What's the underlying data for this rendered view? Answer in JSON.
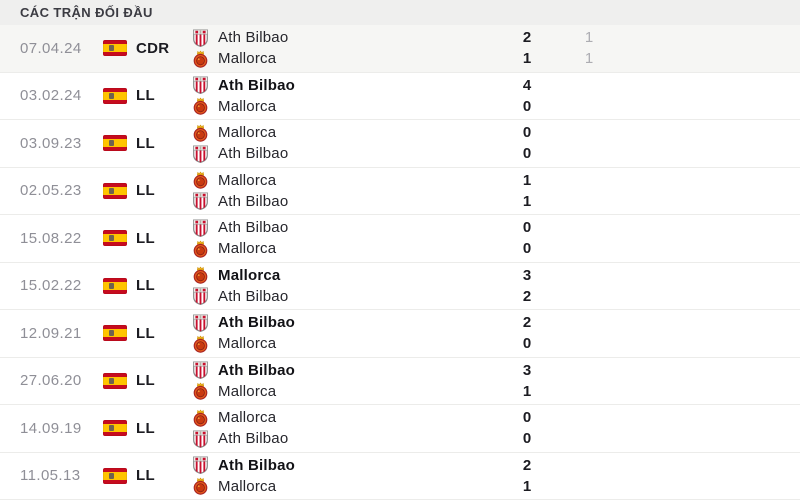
{
  "header": {
    "title": "CÁC TRẬN ĐỐI ĐẦU"
  },
  "colors": {
    "header_bg": "#efefee",
    "highlight_row_bg": "#f6f6f4",
    "date_text": "#8f8f97",
    "primary_text": "#1c1c22",
    "muted_score_text": "#adadb2",
    "divider": "#ececea",
    "flag_red": "#c60b1e",
    "flag_yellow": "#ffc400",
    "bilbao_red": "#c8102e",
    "mallorca_orange": "#e2571b"
  },
  "icons": {
    "flag": "spain-flag-icon",
    "athbilbao": "ath-bilbao-crest-icon",
    "mallorca": "mallorca-crest-icon"
  },
  "matches": [
    {
      "date": "07.04.24",
      "competition": "CDR",
      "highlighted": true,
      "lines": [
        {
          "team": "Ath Bilbao",
          "crest": "athbilbao",
          "bold": false,
          "score": "2",
          "extra": "1"
        },
        {
          "team": "Mallorca",
          "crest": "mallorca",
          "bold": false,
          "score": "1",
          "extra": "1"
        }
      ]
    },
    {
      "date": "03.02.24",
      "competition": "LL",
      "highlighted": false,
      "lines": [
        {
          "team": "Ath Bilbao",
          "crest": "athbilbao",
          "bold": true,
          "score": "4",
          "extra": ""
        },
        {
          "team": "Mallorca",
          "crest": "mallorca",
          "bold": false,
          "score": "0",
          "extra": ""
        }
      ]
    },
    {
      "date": "03.09.23",
      "competition": "LL",
      "highlighted": false,
      "lines": [
        {
          "team": "Mallorca",
          "crest": "mallorca",
          "bold": false,
          "score": "0",
          "extra": ""
        },
        {
          "team": "Ath Bilbao",
          "crest": "athbilbao",
          "bold": false,
          "score": "0",
          "extra": ""
        }
      ]
    },
    {
      "date": "02.05.23",
      "competition": "LL",
      "highlighted": false,
      "lines": [
        {
          "team": "Mallorca",
          "crest": "mallorca",
          "bold": false,
          "score": "1",
          "extra": ""
        },
        {
          "team": "Ath Bilbao",
          "crest": "athbilbao",
          "bold": false,
          "score": "1",
          "extra": ""
        }
      ]
    },
    {
      "date": "15.08.22",
      "competition": "LL",
      "highlighted": false,
      "lines": [
        {
          "team": "Ath Bilbao",
          "crest": "athbilbao",
          "bold": false,
          "score": "0",
          "extra": ""
        },
        {
          "team": "Mallorca",
          "crest": "mallorca",
          "bold": false,
          "score": "0",
          "extra": ""
        }
      ]
    },
    {
      "date": "15.02.22",
      "competition": "LL",
      "highlighted": false,
      "lines": [
        {
          "team": "Mallorca",
          "crest": "mallorca",
          "bold": true,
          "score": "3",
          "extra": ""
        },
        {
          "team": "Ath Bilbao",
          "crest": "athbilbao",
          "bold": false,
          "score": "2",
          "extra": ""
        }
      ]
    },
    {
      "date": "12.09.21",
      "competition": "LL",
      "highlighted": false,
      "lines": [
        {
          "team": "Ath Bilbao",
          "crest": "athbilbao",
          "bold": true,
          "score": "2",
          "extra": ""
        },
        {
          "team": "Mallorca",
          "crest": "mallorca",
          "bold": false,
          "score": "0",
          "extra": ""
        }
      ]
    },
    {
      "date": "27.06.20",
      "competition": "LL",
      "highlighted": false,
      "lines": [
        {
          "team": "Ath Bilbao",
          "crest": "athbilbao",
          "bold": true,
          "score": "3",
          "extra": ""
        },
        {
          "team": "Mallorca",
          "crest": "mallorca",
          "bold": false,
          "score": "1",
          "extra": ""
        }
      ]
    },
    {
      "date": "14.09.19",
      "competition": "LL",
      "highlighted": false,
      "lines": [
        {
          "team": "Mallorca",
          "crest": "mallorca",
          "bold": false,
          "score": "0",
          "extra": ""
        },
        {
          "team": "Ath Bilbao",
          "crest": "athbilbao",
          "bold": false,
          "score": "0",
          "extra": ""
        }
      ]
    },
    {
      "date": "11.05.13",
      "competition": "LL",
      "highlighted": false,
      "lines": [
        {
          "team": "Ath Bilbao",
          "crest": "athbilbao",
          "bold": true,
          "score": "2",
          "extra": ""
        },
        {
          "team": "Mallorca",
          "crest": "mallorca",
          "bold": false,
          "score": "1",
          "extra": ""
        }
      ]
    }
  ]
}
